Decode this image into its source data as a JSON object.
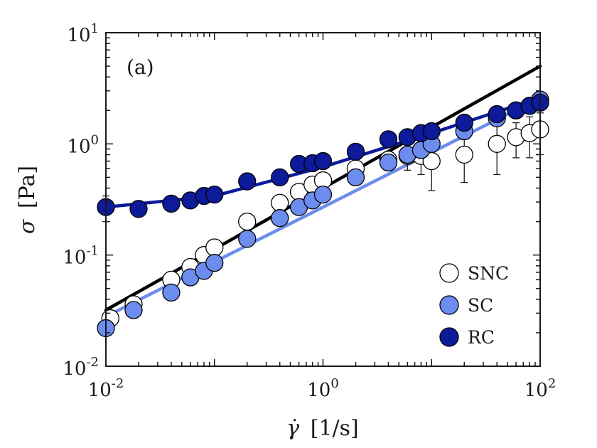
{
  "chart_data": {
    "type": "scatter",
    "panel_label": "(a)",
    "xscale": "log",
    "yscale": "log",
    "xlim": [
      0.01,
      100
    ],
    "ylim": [
      0.01,
      10
    ],
    "xlabel": {
      "main": "γ̇",
      "unit": "[1/s]"
    },
    "ylabel": {
      "main": "σ",
      "unit": "[Pa]"
    },
    "x_ticks": [
      {
        "value": 0.01,
        "base": "10",
        "exp": "-2"
      },
      {
        "value": 1,
        "base": "10",
        "exp": "0"
      },
      {
        "value": 100,
        "base": "10",
        "exp": "2"
      }
    ],
    "y_ticks": [
      {
        "value": 0.01,
        "base": "10",
        "exp": "-2"
      },
      {
        "value": 0.1,
        "base": "10",
        "exp": "-1"
      },
      {
        "value": 1,
        "base": "10",
        "exp": "0"
      },
      {
        "value": 10,
        "base": "10",
        "exp": "1"
      }
    ],
    "legend": {
      "position": "bottom-right",
      "entries": [
        "SNC",
        "SC",
        "RC"
      ]
    },
    "series": [
      {
        "name": "SNC",
        "fill": "#ffffff",
        "stroke": "#000000",
        "points": [
          {
            "x": 0.011,
            "y": 0.027,
            "err": 0.002
          },
          {
            "x": 0.018,
            "y": 0.036,
            "err": 0.003
          },
          {
            "x": 0.04,
            "y": 0.06,
            "err": 0.004
          },
          {
            "x": 0.06,
            "y": 0.078,
            "err": 0.005
          },
          {
            "x": 0.08,
            "y": 0.1,
            "err": 0.006
          },
          {
            "x": 0.1,
            "y": 0.117,
            "err": 0.007
          },
          {
            "x": 0.2,
            "y": 0.2,
            "err": 0.012
          },
          {
            "x": 0.4,
            "y": 0.295,
            "err": 0.02
          },
          {
            "x": 0.6,
            "y": 0.37,
            "err": 0.03
          },
          {
            "x": 0.8,
            "y": 0.43,
            "err": 0.04
          },
          {
            "x": 1.0,
            "y": 0.47,
            "err": 0.04
          },
          {
            "x": 2.0,
            "y": 0.6,
            "err": 0.06
          },
          {
            "x": 4.0,
            "y": 0.72,
            "err": 0.08
          },
          {
            "x": 6.0,
            "y": 0.78,
            "err": 0.2
          },
          {
            "x": 8.0,
            "y": 0.78,
            "err": 0.25
          },
          {
            "x": 10.0,
            "y": 0.7,
            "err": 0.32
          },
          {
            "x": 20.0,
            "y": 0.8,
            "err": 0.35
          },
          {
            "x": 40.0,
            "y": 1.0,
            "err": 0.47
          },
          {
            "x": 60.0,
            "y": 1.15,
            "err": 0.4
          },
          {
            "x": 80.0,
            "y": 1.25,
            "err": 0.5
          },
          {
            "x": 100.0,
            "y": 1.35,
            "err": 0.55
          }
        ]
      },
      {
        "name": "SC",
        "fill": "#6c8cee",
        "stroke": "#000000",
        "points": [
          {
            "x": 0.01,
            "y": 0.022,
            "err": 0.002
          },
          {
            "x": 0.018,
            "y": 0.032,
            "err": 0.003
          },
          {
            "x": 0.04,
            "y": 0.046,
            "err": 0.003
          },
          {
            "x": 0.06,
            "y": 0.063,
            "err": 0.004
          },
          {
            "x": 0.08,
            "y": 0.072,
            "err": 0.005
          },
          {
            "x": 0.1,
            "y": 0.085,
            "err": 0.006
          },
          {
            "x": 0.2,
            "y": 0.14,
            "err": 0.008
          },
          {
            "x": 0.4,
            "y": 0.215,
            "err": 0.012
          },
          {
            "x": 0.6,
            "y": 0.27,
            "err": 0.015
          },
          {
            "x": 0.8,
            "y": 0.31,
            "err": 0.02
          },
          {
            "x": 1.0,
            "y": 0.35,
            "err": 0.02
          },
          {
            "x": 2.0,
            "y": 0.5,
            "err": 0.03
          },
          {
            "x": 4.0,
            "y": 0.68,
            "err": 0.04
          },
          {
            "x": 6.0,
            "y": 0.8,
            "err": 0.05
          },
          {
            "x": 8.0,
            "y": 0.88,
            "err": 0.05
          },
          {
            "x": 10.0,
            "y": 1.0,
            "err": 0.06
          },
          {
            "x": 20.0,
            "y": 1.3,
            "err": 0.08
          },
          {
            "x": 40.0,
            "y": 1.7,
            "err": 0.1
          },
          {
            "x": 60.0,
            "y": 2.0,
            "err": 0.12
          },
          {
            "x": 80.0,
            "y": 2.2,
            "err": 0.14
          },
          {
            "x": 100.0,
            "y": 2.5,
            "err": 0.15
          }
        ]
      },
      {
        "name": "RC",
        "fill": "#0d1a9a",
        "stroke": "#000000",
        "points": [
          {
            "x": 0.01,
            "y": 0.27,
            "err": 0.07
          },
          {
            "x": 0.02,
            "y": 0.26,
            "err": 0.02
          },
          {
            "x": 0.04,
            "y": 0.29,
            "err": 0.02
          },
          {
            "x": 0.06,
            "y": 0.31,
            "err": 0.02
          },
          {
            "x": 0.08,
            "y": 0.34,
            "err": 0.02
          },
          {
            "x": 0.1,
            "y": 0.35,
            "err": 0.02
          },
          {
            "x": 0.2,
            "y": 0.46,
            "err": 0.03
          },
          {
            "x": 0.4,
            "y": 0.5,
            "err": 0.03
          },
          {
            "x": 0.6,
            "y": 0.66,
            "err": 0.04
          },
          {
            "x": 0.8,
            "y": 0.67,
            "err": 0.04
          },
          {
            "x": 1.0,
            "y": 0.7,
            "err": 0.04
          },
          {
            "x": 2.0,
            "y": 0.85,
            "err": 0.05
          },
          {
            "x": 4.0,
            "y": 1.1,
            "err": 0.06
          },
          {
            "x": 6.0,
            "y": 1.15,
            "err": 0.06
          },
          {
            "x": 8.0,
            "y": 1.25,
            "err": 0.07
          },
          {
            "x": 10.0,
            "y": 1.3,
            "err": 0.07
          },
          {
            "x": 20.0,
            "y": 1.55,
            "err": 0.08
          },
          {
            "x": 40.0,
            "y": 1.85,
            "err": 0.1
          },
          {
            "x": 60.0,
            "y": 2.0,
            "err": 0.1
          },
          {
            "x": 80.0,
            "y": 2.2,
            "err": 0.12
          },
          {
            "x": 100.0,
            "y": 2.35,
            "err": 0.12
          }
        ]
      }
    ],
    "fit_lines": [
      {
        "name": "SNC fit",
        "color": "#000000",
        "x": [
          0.01,
          100
        ],
        "y": [
          0.032,
          5.0
        ]
      },
      {
        "name": "SC fit",
        "color": "#6c8cee",
        "x": [
          0.01,
          100
        ],
        "y": [
          0.028,
          2.6
        ]
      },
      {
        "name": "RC fit",
        "color": "#0d1a9a",
        "x": [
          0.01,
          0.1,
          1,
          10,
          100
        ],
        "y": [
          0.27,
          0.34,
          0.62,
          1.25,
          2.6
        ]
      }
    ]
  }
}
